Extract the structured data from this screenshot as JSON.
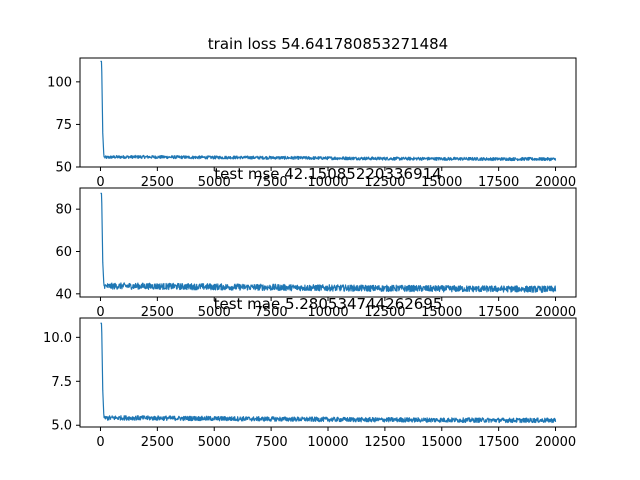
{
  "chart_data": [
    {
      "type": "line",
      "title": "train loss 54.641780853271484",
      "xlabel": "",
      "ylabel": "",
      "xlim": [
        -900,
        20900
      ],
      "ylim": [
        50,
        114
      ],
      "x_ticks": [
        0,
        2500,
        5000,
        7500,
        10000,
        12500,
        15000,
        17500,
        20000
      ],
      "x_tick_labels": [
        "0",
        "2500",
        "5000",
        "7500",
        "10000",
        "12500",
        "15000",
        "17500",
        "20000"
      ],
      "y_ticks": [
        50,
        75,
        100
      ],
      "y_tick_labels": [
        "50",
        "75",
        "100"
      ],
      "line_color": "#1f77b4",
      "series": [
        {
          "x": [
            0,
            50,
            100,
            150,
            200,
            500,
            1000,
            2000,
            3000,
            4000,
            5000,
            6000,
            7000,
            8000,
            9000,
            10000,
            11000,
            12000,
            13000,
            14000,
            15000,
            16000,
            17000,
            18000,
            19000,
            20000
          ],
          "values": [
            112,
            112,
            70,
            56,
            55.6,
            55.8,
            55.9,
            55.9,
            55.8,
            55.7,
            55.6,
            55.6,
            55.5,
            55.4,
            55.3,
            55.2,
            55.1,
            55.0,
            54.9,
            54.9,
            54.8,
            54.8,
            54.7,
            54.7,
            54.7,
            54.6
          ],
          "noise": 0.9
        }
      ]
    },
    {
      "type": "line",
      "title": "test mse 42.15085220336914",
      "xlabel": "",
      "ylabel": "",
      "xlim": [
        -900,
        20900
      ],
      "ylim": [
        38.5,
        90
      ],
      "x_ticks": [
        0,
        2500,
        5000,
        7500,
        10000,
        12500,
        15000,
        17500,
        20000
      ],
      "x_tick_labels": [
        "0",
        "2500",
        "5000",
        "7500",
        "10000",
        "12500",
        "15000",
        "17500",
        "20000"
      ],
      "y_ticks": [
        40,
        60,
        80
      ],
      "y_tick_labels": [
        "40",
        "60",
        "80"
      ],
      "line_color": "#1f77b4",
      "series": [
        {
          "x": [
            0,
            50,
            100,
            150,
            200,
            500,
            1000,
            2000,
            3000,
            4000,
            5000,
            6000,
            7000,
            8000,
            9000,
            10000,
            11000,
            12000,
            13000,
            14000,
            15000,
            16000,
            17000,
            18000,
            19000,
            20000
          ],
          "values": [
            87.5,
            87.5,
            55,
            44,
            43.5,
            43.6,
            43.7,
            43.6,
            43.5,
            43.4,
            43.3,
            43.2,
            43.1,
            43.0,
            42.9,
            42.8,
            42.7,
            42.6,
            42.6,
            42.5,
            42.4,
            42.4,
            42.3,
            42.3,
            42.2,
            42.2
          ],
          "noise": 1.5
        }
      ]
    },
    {
      "type": "line",
      "title": "test mae 5.280534744262695",
      "xlabel": "",
      "ylabel": "",
      "xlim": [
        -900,
        20900
      ],
      "ylim": [
        4.9,
        11.1
      ],
      "x_ticks": [
        0,
        2500,
        5000,
        7500,
        10000,
        12500,
        15000,
        17500,
        20000
      ],
      "x_tick_labels": [
        "0",
        "2500",
        "5000",
        "7500",
        "10000",
        "12500",
        "15000",
        "17500",
        "20000"
      ],
      "y_ticks": [
        5.0,
        7.5,
        10.0
      ],
      "y_tick_labels": [
        "5.0",
        "7.5",
        "10.0"
      ],
      "line_color": "#1f77b4",
      "series": [
        {
          "x": [
            0,
            50,
            100,
            150,
            200,
            500,
            1000,
            2000,
            3000,
            4000,
            5000,
            6000,
            7000,
            8000,
            9000,
            10000,
            11000,
            12000,
            13000,
            14000,
            15000,
            16000,
            17000,
            18000,
            19000,
            20000
          ],
          "values": [
            10.8,
            10.8,
            7.0,
            5.45,
            5.4,
            5.42,
            5.42,
            5.41,
            5.4,
            5.39,
            5.38,
            5.37,
            5.36,
            5.35,
            5.34,
            5.33,
            5.32,
            5.31,
            5.31,
            5.3,
            5.3,
            5.29,
            5.29,
            5.28,
            5.28,
            5.28
          ],
          "noise": 0.13
        }
      ]
    }
  ]
}
